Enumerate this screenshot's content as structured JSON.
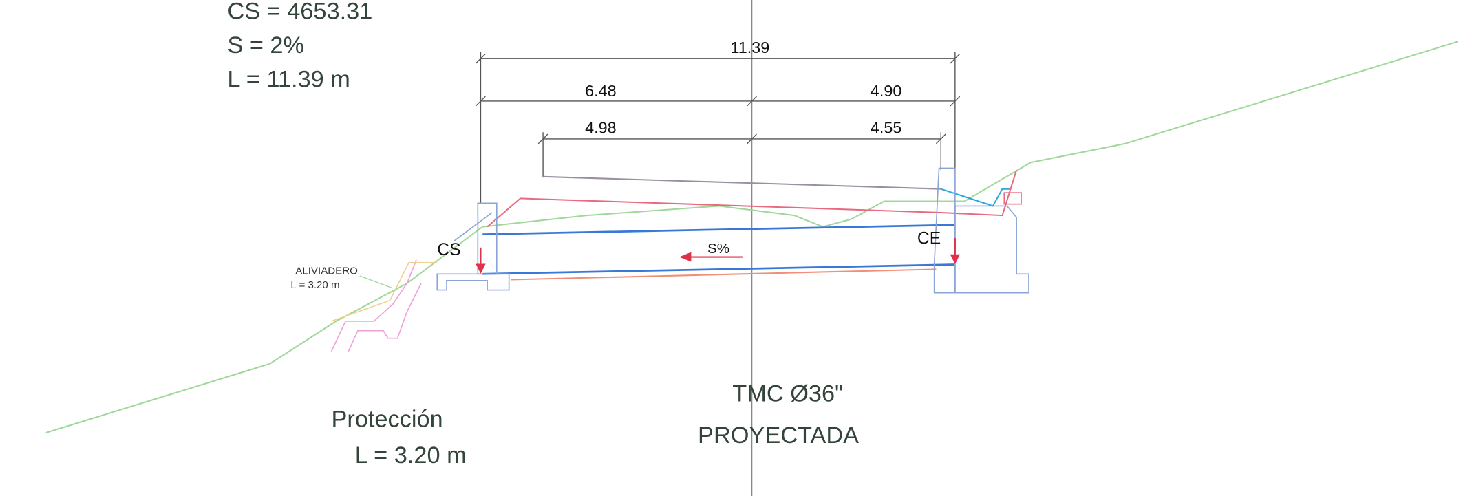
{
  "header": {
    "lines": [
      "CS = 4653.31",
      "S = 2%",
      "L = 11.39 m"
    ]
  },
  "dimensions": {
    "total": "11.39",
    "left_outer": "6.48",
    "right_outer": "4.90",
    "left_inner": "4.98",
    "right_inner": "4.55"
  },
  "labels": {
    "outlet": "CS",
    "inlet": "CE",
    "slope": "S%",
    "spillway": "ALIVIADERO",
    "spillway_length": "L = 3.20 m"
  },
  "protection": {
    "title": "Protección",
    "length": "L = 3.20 m"
  },
  "pipe": {
    "line1": "TMC Ø36\"",
    "line2": "PROYECTADA"
  }
}
